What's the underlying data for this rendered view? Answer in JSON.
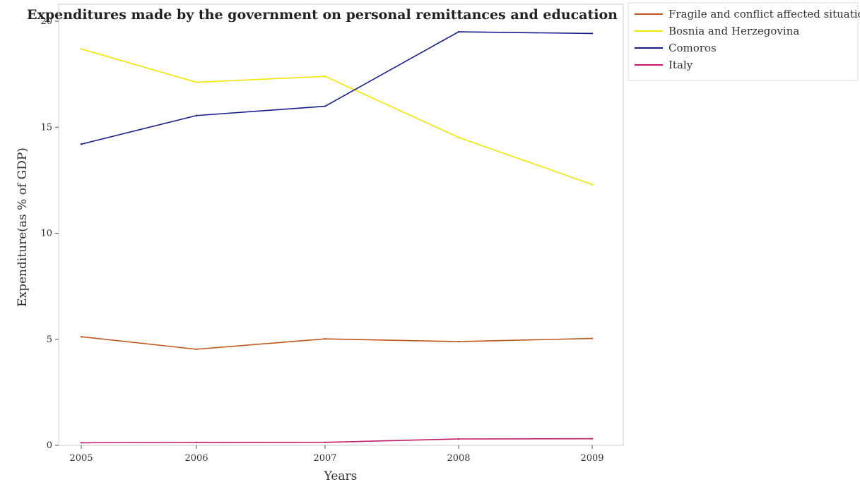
{
  "chart_data": {
    "type": "line",
    "title": "Expenditures made by the government on personal remittances and education",
    "xlabel": "Years",
    "ylabel": "Expenditure(as % of GDP)",
    "x": [
      "2005",
      "2006",
      "2007",
      "2008",
      "2009"
    ],
    "ylim": [
      0,
      20.8
    ],
    "yticks": [
      "0",
      "5",
      "10",
      "15",
      "20"
    ],
    "grid": false,
    "legend_position": "top-right",
    "series": [
      {
        "name": "Fragile and conflict affected situations",
        "color": "#c0561a",
        "values": [
          5.12,
          4.53,
          5.02,
          4.89,
          5.04
        ]
      },
      {
        "name": "Bosnia and Herzegovina",
        "color": "#f2e600",
        "values": [
          18.69,
          17.12,
          17.4,
          14.52,
          12.3
        ]
      },
      {
        "name": "Comoros",
        "color": "#161f8c",
        "values": [
          14.2,
          15.55,
          15.99,
          19.5,
          19.42
        ]
      },
      {
        "name": "Italy",
        "color": "#c21a68",
        "values": [
          0.12,
          0.13,
          0.14,
          0.3,
          0.31
        ]
      }
    ]
  }
}
